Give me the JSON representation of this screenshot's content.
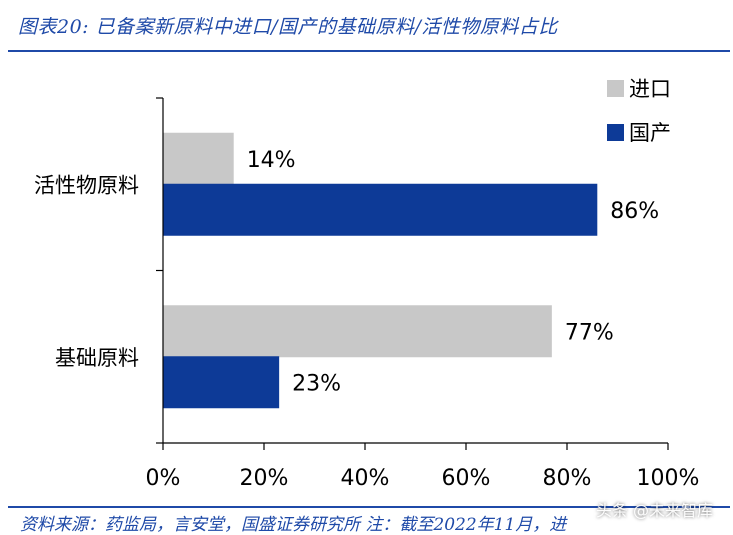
{
  "figure": {
    "title": "图表20:  已备案新原料中进口/国产的基础原料/活性物原料占比",
    "source": "资料来源：药监局，言安堂，国盛证券研究所 注：截至2022年11月，进",
    "watermark": "头条 @未来智库"
  },
  "colors": {
    "import": "#c8c8c8",
    "domestic": "#0d3a97",
    "axis": "#000000"
  },
  "chart_data": {
    "type": "bar",
    "orientation": "horizontal",
    "categories": [
      "活性物原料",
      "基础原料"
    ],
    "series": [
      {
        "name": "进口",
        "values": [
          14,
          77
        ],
        "labels": [
          "14%",
          "77%"
        ]
      },
      {
        "name": "国产",
        "values": [
          86,
          23
        ],
        "labels": [
          "86%",
          "23%"
        ]
      }
    ],
    "xlim": [
      0,
      100
    ],
    "xticks": [
      0,
      20,
      40,
      60,
      80,
      100
    ],
    "xtick_labels": [
      "0%",
      "20%",
      "40%",
      "60%",
      "80%",
      "100%"
    ],
    "xlabel": "",
    "ylabel": "",
    "grid": false,
    "legend": "top-right"
  }
}
